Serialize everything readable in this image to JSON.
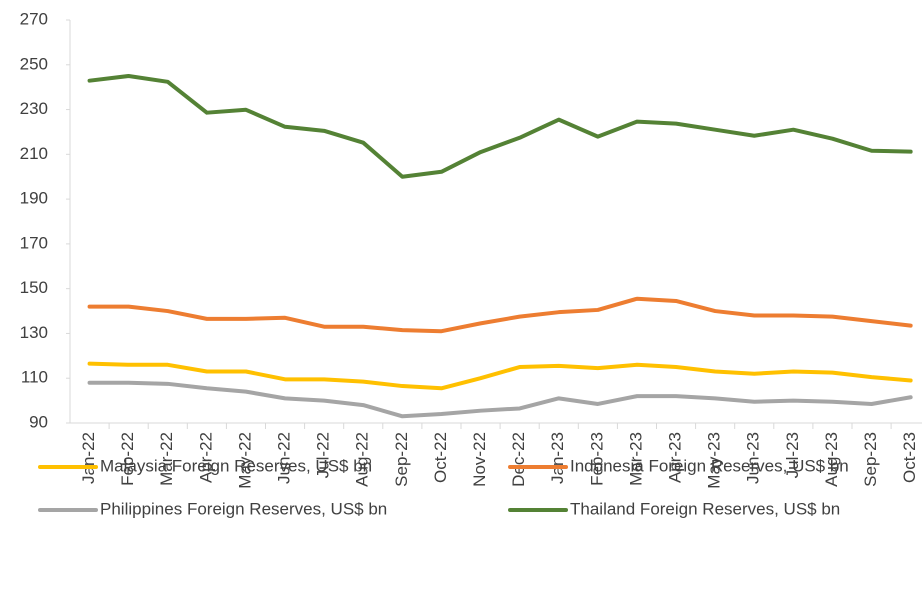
{
  "chart_data": {
    "type": "line",
    "categories": [
      "Jan-22",
      "Feb-22",
      "Mar-22",
      "Apr-22",
      "May-22",
      "Jun-22",
      "Jul-22",
      "Aug-22",
      "Sep-22",
      "Oct-22",
      "Nov-22",
      "Dec-22",
      "Jan-23",
      "Feb-23",
      "Mar-23",
      "Apr-23",
      "May-23",
      "Jun-23",
      "Jul-23",
      "Aug-23",
      "Sep-23",
      "Oct-23"
    ],
    "series": [
      {
        "name": "Malaysia Foreign Reserves, US$ bn",
        "color": "#ffc000",
        "values": [
          116.5,
          116,
          116,
          113,
          113,
          109.5,
          109.5,
          108.5,
          106.5,
          105.5,
          110,
          115,
          115.5,
          114.5,
          116,
          115,
          113,
          112,
          113,
          112.5,
          110.5,
          109
        ]
      },
      {
        "name": "Indonesia Foreign Reserves, US$ bn",
        "color": "#ed7d31",
        "values": [
          142,
          142,
          140,
          136.5,
          136.5,
          137,
          133,
          133,
          131.5,
          131,
          134.5,
          137.5,
          139.5,
          140.5,
          145.5,
          144.5,
          140,
          138,
          138,
          137.5,
          135.5,
          133.5
        ]
      },
      {
        "name": "Philippines Foreign Reserves, US$ bn",
        "color": "#a5a5a5",
        "values": [
          108,
          108,
          107.5,
          105.5,
          104,
          101,
          100,
          98,
          93,
          94,
          95.5,
          96.5,
          101,
          98.5,
          102,
          102,
          101,
          99.5,
          100,
          99.5,
          98.5,
          101.5
        ]
      },
      {
        "name": "Thailand Foreign Reserves, US$ bn",
        "color": "#548235",
        "values": [
          242.9,
          245,
          242.4,
          228.6,
          229.9,
          222.3,
          220.5,
          215.2,
          200,
          202.2,
          211,
          217.4,
          225.5,
          217.9,
          224.6,
          223.7,
          221,
          218.3,
          221,
          217,
          211.6,
          211.2
        ]
      }
    ],
    "ylim": [
      90,
      270
    ],
    "yticks": [
      90,
      110,
      130,
      150,
      170,
      190,
      210,
      230,
      250,
      270
    ],
    "grid": false,
    "legend": "bottom"
  }
}
